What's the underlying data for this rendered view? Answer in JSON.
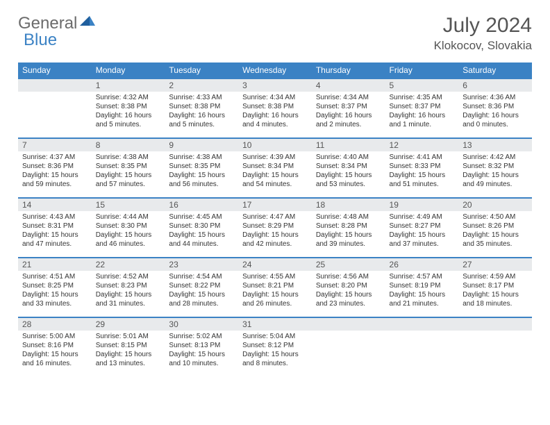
{
  "logo": {
    "text1": "General",
    "text2": "Blue"
  },
  "title": "July 2024",
  "location": "Klokocov, Slovakia",
  "colors": {
    "accent": "#3b82c4",
    "dayHeaderBg": "#e8eaec",
    "text": "#333333"
  },
  "headers": [
    "Sunday",
    "Monday",
    "Tuesday",
    "Wednesday",
    "Thursday",
    "Friday",
    "Saturday"
  ],
  "weeks": [
    [
      null,
      {
        "n": "1",
        "l1": "Sunrise: 4:32 AM",
        "l2": "Sunset: 8:38 PM",
        "l3": "Daylight: 16 hours",
        "l4": "and 5 minutes."
      },
      {
        "n": "2",
        "l1": "Sunrise: 4:33 AM",
        "l2": "Sunset: 8:38 PM",
        "l3": "Daylight: 16 hours",
        "l4": "and 5 minutes."
      },
      {
        "n": "3",
        "l1": "Sunrise: 4:34 AM",
        "l2": "Sunset: 8:38 PM",
        "l3": "Daylight: 16 hours",
        "l4": "and 4 minutes."
      },
      {
        "n": "4",
        "l1": "Sunrise: 4:34 AM",
        "l2": "Sunset: 8:37 PM",
        "l3": "Daylight: 16 hours",
        "l4": "and 2 minutes."
      },
      {
        "n": "5",
        "l1": "Sunrise: 4:35 AM",
        "l2": "Sunset: 8:37 PM",
        "l3": "Daylight: 16 hours",
        "l4": "and 1 minute."
      },
      {
        "n": "6",
        "l1": "Sunrise: 4:36 AM",
        "l2": "Sunset: 8:36 PM",
        "l3": "Daylight: 16 hours",
        "l4": "and 0 minutes."
      }
    ],
    [
      {
        "n": "7",
        "l1": "Sunrise: 4:37 AM",
        "l2": "Sunset: 8:36 PM",
        "l3": "Daylight: 15 hours",
        "l4": "and 59 minutes."
      },
      {
        "n": "8",
        "l1": "Sunrise: 4:38 AM",
        "l2": "Sunset: 8:35 PM",
        "l3": "Daylight: 15 hours",
        "l4": "and 57 minutes."
      },
      {
        "n": "9",
        "l1": "Sunrise: 4:38 AM",
        "l2": "Sunset: 8:35 PM",
        "l3": "Daylight: 15 hours",
        "l4": "and 56 minutes."
      },
      {
        "n": "10",
        "l1": "Sunrise: 4:39 AM",
        "l2": "Sunset: 8:34 PM",
        "l3": "Daylight: 15 hours",
        "l4": "and 54 minutes."
      },
      {
        "n": "11",
        "l1": "Sunrise: 4:40 AM",
        "l2": "Sunset: 8:34 PM",
        "l3": "Daylight: 15 hours",
        "l4": "and 53 minutes."
      },
      {
        "n": "12",
        "l1": "Sunrise: 4:41 AM",
        "l2": "Sunset: 8:33 PM",
        "l3": "Daylight: 15 hours",
        "l4": "and 51 minutes."
      },
      {
        "n": "13",
        "l1": "Sunrise: 4:42 AM",
        "l2": "Sunset: 8:32 PM",
        "l3": "Daylight: 15 hours",
        "l4": "and 49 minutes."
      }
    ],
    [
      {
        "n": "14",
        "l1": "Sunrise: 4:43 AM",
        "l2": "Sunset: 8:31 PM",
        "l3": "Daylight: 15 hours",
        "l4": "and 47 minutes."
      },
      {
        "n": "15",
        "l1": "Sunrise: 4:44 AM",
        "l2": "Sunset: 8:30 PM",
        "l3": "Daylight: 15 hours",
        "l4": "and 46 minutes."
      },
      {
        "n": "16",
        "l1": "Sunrise: 4:45 AM",
        "l2": "Sunset: 8:30 PM",
        "l3": "Daylight: 15 hours",
        "l4": "and 44 minutes."
      },
      {
        "n": "17",
        "l1": "Sunrise: 4:47 AM",
        "l2": "Sunset: 8:29 PM",
        "l3": "Daylight: 15 hours",
        "l4": "and 42 minutes."
      },
      {
        "n": "18",
        "l1": "Sunrise: 4:48 AM",
        "l2": "Sunset: 8:28 PM",
        "l3": "Daylight: 15 hours",
        "l4": "and 39 minutes."
      },
      {
        "n": "19",
        "l1": "Sunrise: 4:49 AM",
        "l2": "Sunset: 8:27 PM",
        "l3": "Daylight: 15 hours",
        "l4": "and 37 minutes."
      },
      {
        "n": "20",
        "l1": "Sunrise: 4:50 AM",
        "l2": "Sunset: 8:26 PM",
        "l3": "Daylight: 15 hours",
        "l4": "and 35 minutes."
      }
    ],
    [
      {
        "n": "21",
        "l1": "Sunrise: 4:51 AM",
        "l2": "Sunset: 8:25 PM",
        "l3": "Daylight: 15 hours",
        "l4": "and 33 minutes."
      },
      {
        "n": "22",
        "l1": "Sunrise: 4:52 AM",
        "l2": "Sunset: 8:23 PM",
        "l3": "Daylight: 15 hours",
        "l4": "and 31 minutes."
      },
      {
        "n": "23",
        "l1": "Sunrise: 4:54 AM",
        "l2": "Sunset: 8:22 PM",
        "l3": "Daylight: 15 hours",
        "l4": "and 28 minutes."
      },
      {
        "n": "24",
        "l1": "Sunrise: 4:55 AM",
        "l2": "Sunset: 8:21 PM",
        "l3": "Daylight: 15 hours",
        "l4": "and 26 minutes."
      },
      {
        "n": "25",
        "l1": "Sunrise: 4:56 AM",
        "l2": "Sunset: 8:20 PM",
        "l3": "Daylight: 15 hours",
        "l4": "and 23 minutes."
      },
      {
        "n": "26",
        "l1": "Sunrise: 4:57 AM",
        "l2": "Sunset: 8:19 PM",
        "l3": "Daylight: 15 hours",
        "l4": "and 21 minutes."
      },
      {
        "n": "27",
        "l1": "Sunrise: 4:59 AM",
        "l2": "Sunset: 8:17 PM",
        "l3": "Daylight: 15 hours",
        "l4": "and 18 minutes."
      }
    ],
    [
      {
        "n": "28",
        "l1": "Sunrise: 5:00 AM",
        "l2": "Sunset: 8:16 PM",
        "l3": "Daylight: 15 hours",
        "l4": "and 16 minutes."
      },
      {
        "n": "29",
        "l1": "Sunrise: 5:01 AM",
        "l2": "Sunset: 8:15 PM",
        "l3": "Daylight: 15 hours",
        "l4": "and 13 minutes."
      },
      {
        "n": "30",
        "l1": "Sunrise: 5:02 AM",
        "l2": "Sunset: 8:13 PM",
        "l3": "Daylight: 15 hours",
        "l4": "and 10 minutes."
      },
      {
        "n": "31",
        "l1": "Sunrise: 5:04 AM",
        "l2": "Sunset: 8:12 PM",
        "l3": "Daylight: 15 hours",
        "l4": "and 8 minutes."
      },
      null,
      null,
      null
    ]
  ]
}
